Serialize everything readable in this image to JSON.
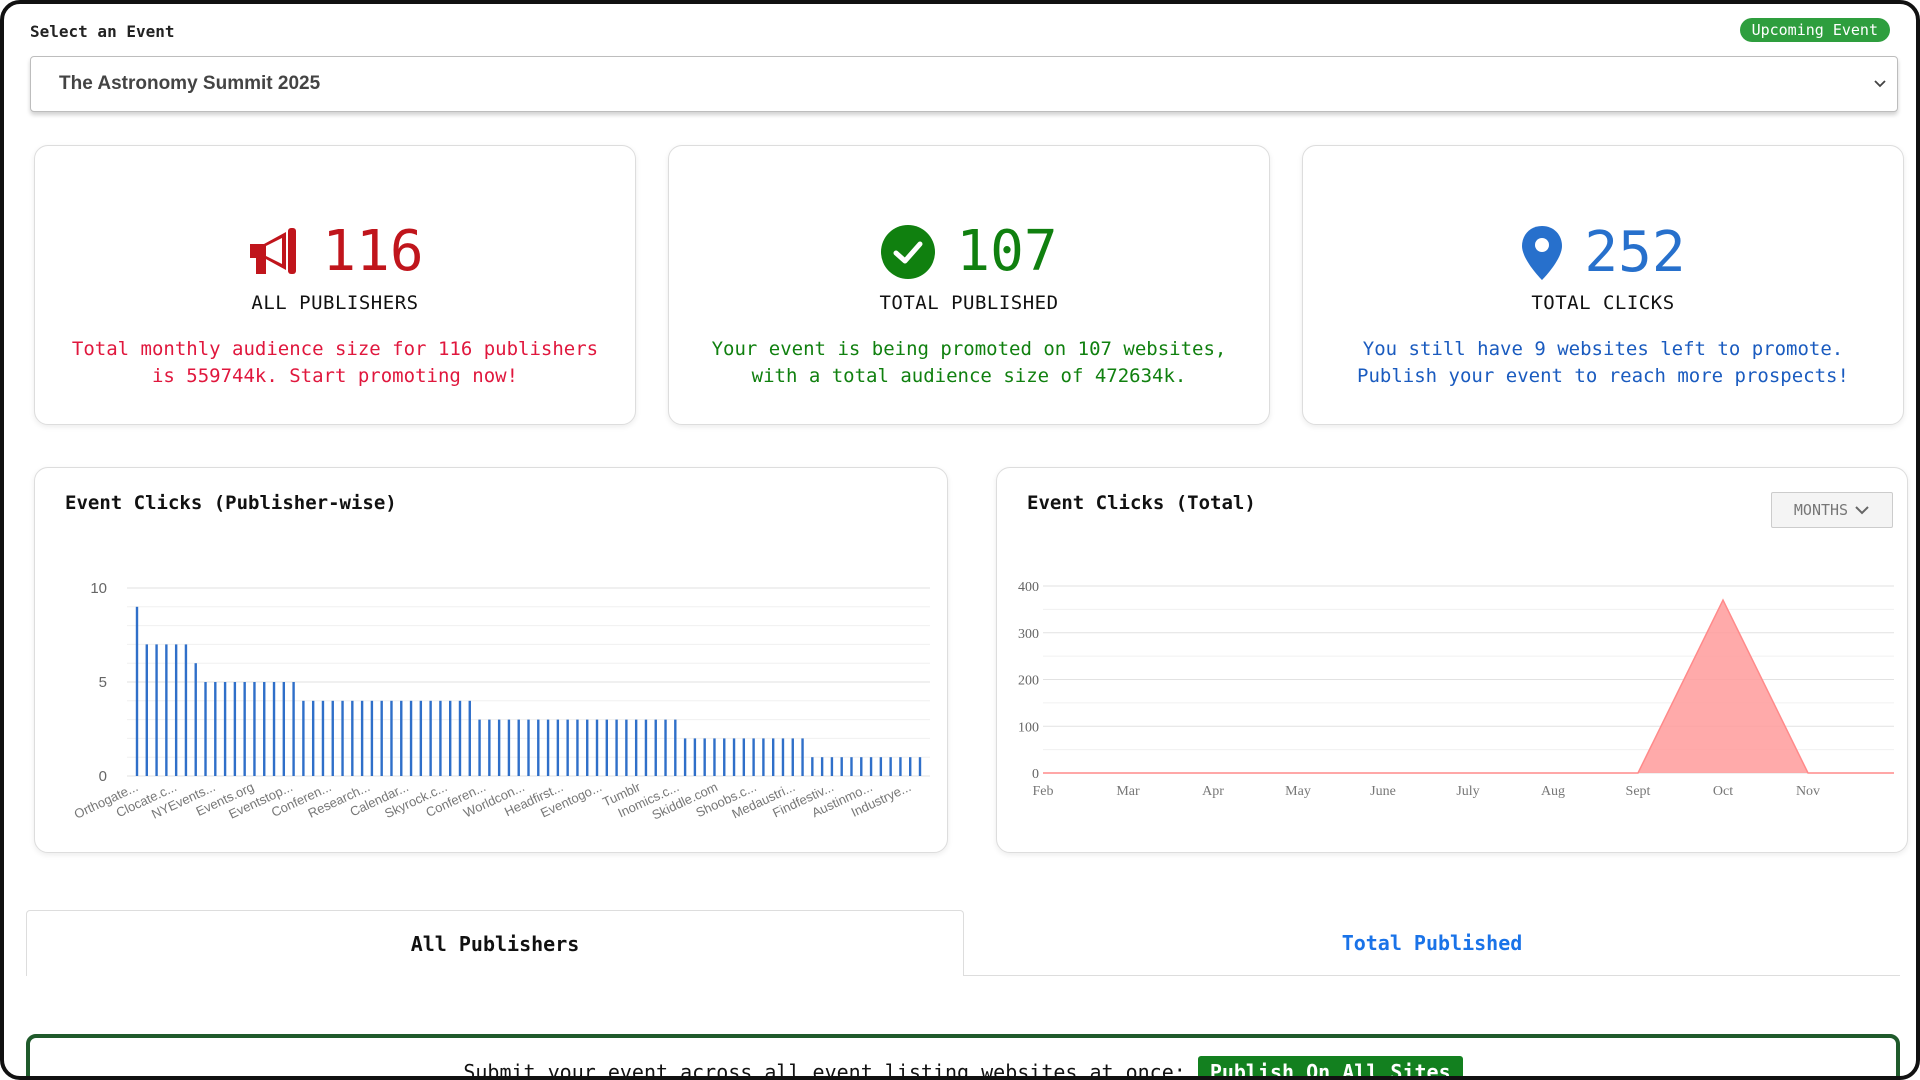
{
  "header": {
    "select_label": "Select an Event",
    "badge": "Upcoming Event",
    "selected_event": "The Astronomy Summit 2025"
  },
  "cards": [
    {
      "icon": "megaphone-icon",
      "value": "116",
      "label": "ALL PUBLISHERS",
      "desc_line1": "Total monthly audience size for 116 publishers",
      "desc_line2": "is 559744k. Start promoting now!",
      "color": "#c0151c"
    },
    {
      "icon": "check-circle-icon",
      "value": "107",
      "label": "TOTAL PUBLISHED",
      "desc_line1": "Your event is being promoted on 107 websites,",
      "desc_line2": "with a total audience size of 472634k.",
      "color": "#10800f"
    },
    {
      "icon": "map-pin-icon",
      "value": "252",
      "label": "TOTAL CLICKS",
      "desc_line1": "You still have 9 websites left to promote.",
      "desc_line2": "Publish your event to reach more prospects!",
      "color": "#2770cc"
    }
  ],
  "chart_data": [
    {
      "type": "bar",
      "title": "Event Clicks (Publisher-wise)",
      "ylim": [
        0,
        10
      ],
      "yticks": [
        0,
        5,
        10
      ],
      "color": "#2f6fc9",
      "x_tick_labels": [
        "Orthogate...",
        "Clocate.c...",
        "NYEvents...",
        "Events.org",
        "Eventstop...",
        "Conferen...",
        "Research...",
        "Calendar...",
        "Skyrock.c...",
        "Conferen...",
        "Worldcon...",
        "Headfirst...",
        "Eventogo...",
        "Tumblr",
        "Inomics.c...",
        "Skiddle.com",
        "Shoobs.c...",
        "Medaustri...",
        "Findfestiv...",
        "Austinmo...",
        "Industrye..."
      ],
      "values": [
        9,
        7,
        7,
        7,
        7,
        7,
        6,
        5,
        5,
        5,
        5,
        5,
        5,
        5,
        5,
        5,
        5,
        4,
        4,
        4,
        4,
        4,
        4,
        4,
        4,
        4,
        4,
        4,
        4,
        4,
        4,
        4,
        4,
        4,
        4,
        3,
        3,
        3,
        3,
        3,
        3,
        3,
        3,
        3,
        3,
        3,
        3,
        3,
        3,
        3,
        3,
        3,
        3,
        3,
        3,
        3,
        2,
        2,
        2,
        2,
        2,
        2,
        2,
        2,
        2,
        2,
        2,
        2,
        2,
        1,
        1,
        1,
        1,
        1,
        1,
        1,
        1,
        1,
        1,
        1,
        1
      ]
    },
    {
      "type": "area",
      "title": "Event Clicks (Total)",
      "categories": [
        "Feb",
        "Mar",
        "Apr",
        "May",
        "June",
        "July",
        "Aug",
        "Sept",
        "Oct",
        "Nov"
      ],
      "values": [
        0,
        0,
        0,
        0,
        0,
        0,
        0,
        0,
        370,
        0
      ],
      "ylim": [
        0,
        400
      ],
      "yticks": [
        0,
        100,
        200,
        300,
        400
      ],
      "color": "#ff9b9b",
      "range_selector": "MONTHS"
    }
  ],
  "tabs": {
    "all": "All Publishers",
    "published": "Total Published"
  },
  "submit": {
    "text": "Submit your event across all event listing websites at once:",
    "button": "Publish On All Sites"
  }
}
